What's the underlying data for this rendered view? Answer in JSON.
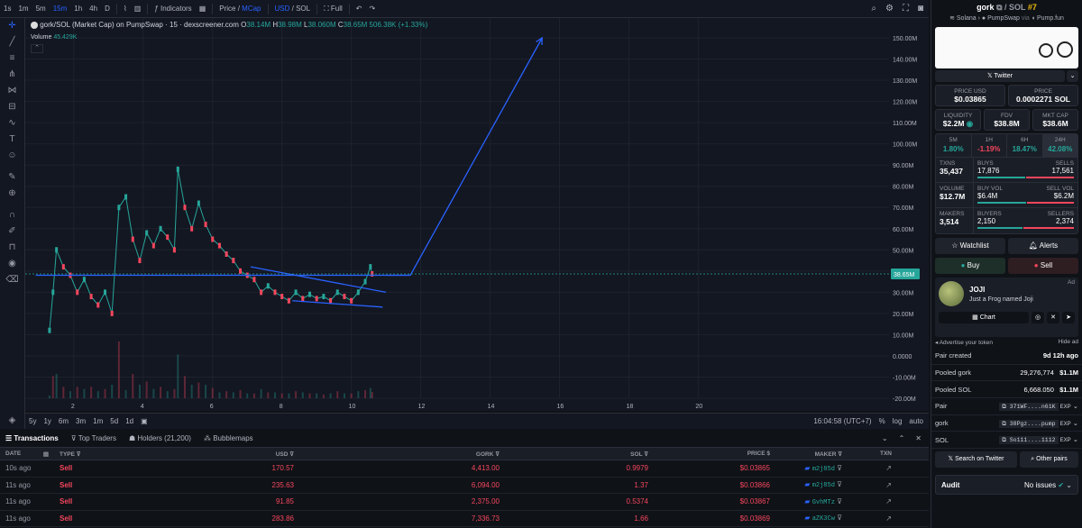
{
  "toolbar": {
    "timeframes": [
      "1s",
      "1m",
      "5m",
      "15m",
      "1h",
      "4h",
      "D"
    ],
    "active_timeframe": "15m",
    "indicators": "Indicators",
    "price": "Price",
    "mcap": "MCap",
    "usd": "USD",
    "sol": "SOL",
    "full": "Full"
  },
  "chart": {
    "title": "gork/SOL (Market Cap) on PumpSwap · 15 · dexscreener.com",
    "ohlc": {
      "o_label": "O",
      "o": "38.14M",
      "h_label": "H",
      "h": "38.98M",
      "l_label": "L",
      "l": "38.060M",
      "c_label": "C",
      "c": "38.65M",
      "chg": "506.38K (+1.33%)"
    },
    "volume_label": "Volume",
    "volume_value": "45.429K",
    "price_tag": "38.65M",
    "time_readout": "16:04:58 (UTC+7)",
    "pct": "%",
    "log": "log",
    "auto": "auto",
    "ranges": [
      "5y",
      "1y",
      "6m",
      "3m",
      "1m",
      "5d",
      "1d"
    ]
  },
  "chart_data": {
    "type": "line",
    "y_tick_labels": [
      "150.00M",
      "140.00M",
      "130.00M",
      "120.00M",
      "110.00M",
      "100.00M",
      "90.00M",
      "80.00M",
      "70.00M",
      "60.00M",
      "50.00M",
      "40.00M",
      "30.00M",
      "20.00M",
      "10.00M",
      "0.0000",
      "-10.00M",
      "-20.00M"
    ],
    "x_tick_labels": [
      "2",
      "4",
      "6",
      "8",
      "10",
      "12",
      "14",
      "16",
      "18",
      "20"
    ],
    "ylim": [
      -20,
      150
    ],
    "xlim": [
      0.6,
      25.5
    ],
    "series": [
      {
        "x": [
          1.3,
          1.4,
          1.5,
          1.7,
          1.9,
          2.1,
          2.3,
          2.5,
          2.7,
          2.9,
          3.1,
          3.3,
          3.5,
          3.7,
          3.9,
          4.1,
          4.3,
          4.5,
          4.7,
          4.9,
          5.0,
          5.2,
          5.4,
          5.6,
          5.8,
          6.0,
          6.2,
          6.4,
          6.6,
          6.8,
          7.0,
          7.2,
          7.4,
          7.6,
          7.8,
          8.0,
          8.2,
          8.4,
          8.6,
          8.8,
          9.0,
          9.2,
          9.4,
          9.6,
          9.8,
          10.0,
          10.2,
          10.4,
          10.55,
          10.6
        ],
        "y": [
          12,
          30,
          50,
          42,
          38,
          30,
          36,
          28,
          24,
          30,
          20,
          70,
          75,
          55,
          45,
          58,
          52,
          60,
          56,
          50,
          88,
          70,
          60,
          72,
          62,
          55,
          52,
          48,
          45,
          40,
          38,
          36,
          30,
          33,
          30,
          28,
          26,
          30,
          27,
          29,
          27,
          28,
          26,
          30,
          28,
          26,
          30,
          35,
          42,
          38.65
        ]
      }
    ],
    "drawings": {
      "support_line": {
        "x": [
          0.9,
          11.7
        ],
        "y": [
          38.0,
          38.0
        ]
      },
      "wedge_upper": {
        "x": [
          7.1,
          11.0
        ],
        "y": [
          42,
          30
        ]
      },
      "wedge_lower": {
        "x": [
          8.3,
          10.9
        ],
        "y": [
          26,
          23
        ]
      },
      "projection": [
        {
          "x": 11.0,
          "y": 38.0
        },
        {
          "x": 11.7,
          "y": 38.0
        },
        {
          "x": 15.5,
          "y": 150
        }
      ]
    }
  },
  "bottom_tabs": [
    "Transactions",
    "Top Traders",
    "Holders (21,200)",
    "Bubblemaps"
  ],
  "tx_headers": [
    "DATE",
    "TYPE",
    "USD",
    "GORK",
    "SOL",
    "PRICE",
    "MAKER",
    "TXN"
  ],
  "tx_rows": [
    {
      "date": "10s ago",
      "type": "Sell",
      "usd": "170.57",
      "gork": "4,413.00",
      "sol": "0.9979",
      "price": "$0.03865",
      "maker": "m2j85d"
    },
    {
      "date": "11s ago",
      "type": "Sell",
      "usd": "235.63",
      "gork": "6,094.00",
      "sol": "1.37",
      "price": "$0.03866",
      "maker": "m2j85d"
    },
    {
      "date": "11s ago",
      "type": "Sell",
      "usd": "91.85",
      "gork": "2,375.00",
      "sol": "0.5374",
      "price": "$0.03867",
      "maker": "GvhMTz"
    },
    {
      "date": "11s ago",
      "type": "Sell",
      "usd": "283.86",
      "gork": "7,336.73",
      "sol": "1.66",
      "price": "$0.03869",
      "maker": "aZK3Cw"
    }
  ],
  "panel": {
    "token": "gork",
    "pair": "/ SOL",
    "rank": "#7",
    "chain": "Solana",
    "dex": "PumpSwap",
    "via": "via",
    "launch": "Pump.fun",
    "twitter": "Twitter",
    "price_usd_label": "PRICE USD",
    "price_usd": "$0.03865",
    "price_sol_label": "PRICE",
    "price_sol": "0.0002271 SOL",
    "liq_label": "LIQUIDITY",
    "liq": "$2.2M",
    "fdv_label": "FDV",
    "fdv": "$38.8M",
    "mcap_label": "MKT CAP",
    "mcap": "$38.6M",
    "changes": [
      {
        "p": "5M",
        "v": "1.80%",
        "c": "grn"
      },
      {
        "p": "1H",
        "v": "-1.19%",
        "c": "red"
      },
      {
        "p": "6H",
        "v": "18.47%",
        "c": "grn"
      },
      {
        "p": "24H",
        "v": "42.08%",
        "c": "grn"
      }
    ],
    "txns_label": "TXNS",
    "txns": "35,437",
    "buys_label": "BUYS",
    "buys": "17,876",
    "sells_label": "SELLS",
    "sells": "17,561",
    "volume_label": "VOLUME",
    "volume": "$12.7M",
    "buyvol_label": "BUY VOL",
    "buyvol": "$6.4M",
    "sellvol_label": "SELL VOL",
    "sellvol": "$6.2M",
    "makers_label": "MAKERS",
    "makers": "3,514",
    "buyers_label": "BUYERS",
    "buyers": "2,150",
    "sellers_label": "SELLERS",
    "sellers": "2,374",
    "watchlist": "Watchlist",
    "alerts": "Alerts",
    "buy": "Buy",
    "sell": "Sell",
    "ad": "Ad",
    "ad_title": "JOJI",
    "ad_sub": "Just a Frog named Joji",
    "ad_chart": "Chart",
    "advertise": "Advertise your token",
    "hide_ad": "Hide ad",
    "pair_created_label": "Pair created",
    "pair_created": "9d 12h ago",
    "pooled_gork_label": "Pooled gork",
    "pooled_gork": "29,276,774",
    "pooled_gork_usd": "$1.1M",
    "pooled_sol_label": "Pooled SOL",
    "pooled_sol": "6,668.050",
    "pooled_sol_usd": "$1.1M",
    "pair_label": "Pair",
    "pair_addr": "371WF....n61K",
    "gork_label": "gork",
    "gork_addr": "38Pgz....pump",
    "sol_label": "SOL",
    "sol_addr": "So111....1112",
    "exp": "EXP",
    "search_twitter": "Search on Twitter",
    "other_pairs": "Other pairs",
    "audit": "Audit",
    "no_issues": "No issues"
  }
}
